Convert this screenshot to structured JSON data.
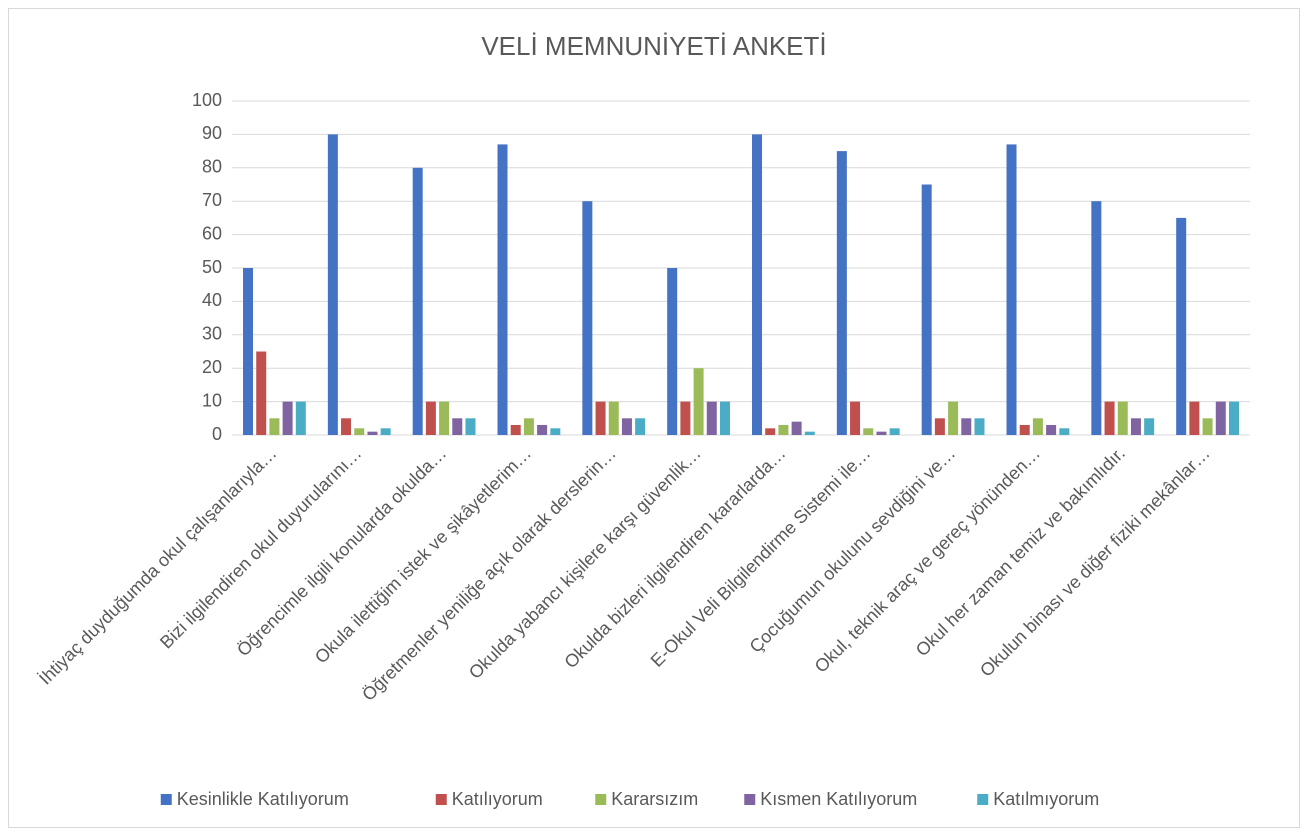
{
  "chart_data": {
    "type": "bar",
    "title": "VELİ MEMNUNİYETİ ANKETİ",
    "categories": [
      "İhtiyaç duyduğumda okul çalışanlarıyla…",
      "Bizi ilgilendiren okul duyurularını…",
      "Öğrencimle ilgili konularda okulda…",
      "Okula ilettiğim istek ve şikâyetlerim…",
      "Öğretmenler yeniliğe açık olarak derslerin…",
      "Okulda yabancı kişilere karşı güvenlik…",
      "Okulda bizleri ilgilendiren kararlarda…",
      "E-Okul Veli Bilgilendirme Sistemi ile…",
      "Çocuğumun okulunu sevdiğini ve…",
      "Okul, teknik araç ve gereç yönünden…",
      "Okul her zaman temiz ve bakımlıdır.",
      "Okulun binası ve diğer fiziki mekânlar…"
    ],
    "series": [
      {
        "name": "Kesinlikle Katılıyorum",
        "color": "#4472c4",
        "values": [
          50,
          90,
          80,
          87,
          70,
          50,
          90,
          85,
          75,
          87,
          70,
          65
        ]
      },
      {
        "name": "Katılıyorum",
        "color": "#c0504d",
        "values": [
          25,
          5,
          10,
          3,
          10,
          10,
          2,
          10,
          5,
          3,
          10,
          10
        ]
      },
      {
        "name": "Kararsızım",
        "color": "#9bbb59",
        "values": [
          5,
          2,
          10,
          5,
          10,
          20,
          3,
          2,
          10,
          5,
          10,
          5
        ]
      },
      {
        "name": "Kısmen Katılıyorum",
        "color": "#8064a2",
        "values": [
          10,
          1,
          5,
          3,
          5,
          10,
          4,
          1,
          5,
          3,
          5,
          10
        ]
      },
      {
        "name": "Katılmıyorum",
        "color": "#4bacc6",
        "values": [
          10,
          2,
          5,
          2,
          5,
          10,
          1,
          2,
          5,
          2,
          5,
          10
        ]
      }
    ],
    "ylim": [
      0,
      100
    ],
    "yticks": [
      0,
      10,
      20,
      30,
      40,
      50,
      60,
      70,
      80,
      90,
      100
    ],
    "grid": true,
    "legend": "bottom"
  }
}
